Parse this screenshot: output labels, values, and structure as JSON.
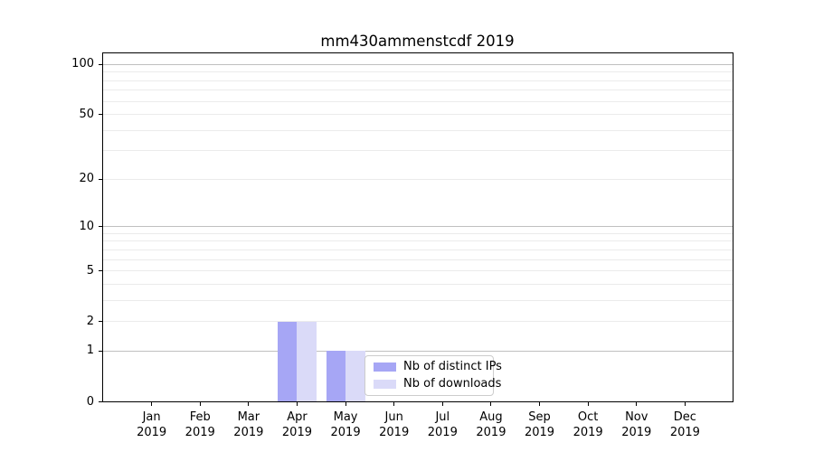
{
  "title": "mm430ammenstcdf 2019",
  "chart_data": {
    "type": "bar",
    "title": "mm430ammenstcdf 2019",
    "categories": [
      "Jan 2019",
      "Feb 2019",
      "Mar 2019",
      "Apr 2019",
      "May 2019",
      "Jun 2019",
      "Jul 2019",
      "Aug 2019",
      "Sep 2019",
      "Oct 2019",
      "Nov 2019",
      "Dec 2019"
    ],
    "series": [
      {
        "name": "Nb of distinct IPs",
        "color": "#a6a6f5",
        "values": [
          0,
          0,
          0,
          2,
          1,
          0,
          0,
          0,
          0,
          0,
          0,
          0
        ]
      },
      {
        "name": "Nb of downloads",
        "color": "#dadaf8",
        "values": [
          0,
          0,
          0,
          2,
          1,
          0,
          0,
          0,
          0,
          0,
          0,
          0
        ]
      }
    ],
    "yscale": "log1p",
    "ylim": [
      0,
      116
    ],
    "yticks": [
      0,
      1,
      2,
      5,
      10,
      20,
      50,
      100
    ],
    "grid_major_values": [
      1,
      10,
      100
    ],
    "grid_minor_values": [
      2,
      3,
      4,
      5,
      6,
      7,
      8,
      9,
      20,
      30,
      40,
      50,
      60,
      70,
      80,
      90
    ],
    "grid_major_color": "#c0c0c0",
    "grid_minor_color": "#ebebeb",
    "legend_position": "lower center-right inside plot",
    "xlabel": "",
    "ylabel": ""
  }
}
